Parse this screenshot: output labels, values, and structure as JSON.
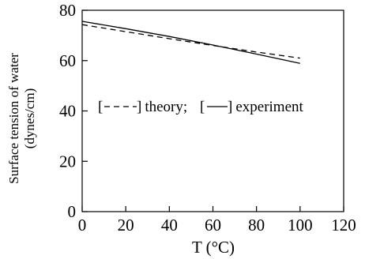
{
  "chart_data": {
    "type": "line",
    "title": "",
    "xlabel": "T (°C)",
    "ylabel": [
      "Surface tension of water",
      "(dynes/cm)"
    ],
    "xlim": [
      0,
      120
    ],
    "ylim": [
      0,
      80
    ],
    "xticks": [
      0,
      20,
      40,
      60,
      80,
      100,
      120
    ],
    "yticks": [
      0,
      20,
      40,
      60,
      80
    ],
    "grid": false,
    "legend_text": {
      "open1": "[",
      "theory": "theory;",
      "open2": "[",
      "experiment": "experiment"
    },
    "series": [
      {
        "name": "theory",
        "style": "dashed",
        "x": [
          0,
          20,
          40,
          60,
          80,
          100
        ],
        "y": [
          74.3,
          71.5,
          68.7,
          66.0,
          63.4,
          61.0
        ]
      },
      {
        "name": "experiment",
        "style": "solid",
        "x": [
          0,
          20,
          40,
          60,
          80,
          100
        ],
        "y": [
          75.6,
          72.7,
          69.6,
          66.2,
          62.6,
          58.9
        ]
      }
    ]
  }
}
